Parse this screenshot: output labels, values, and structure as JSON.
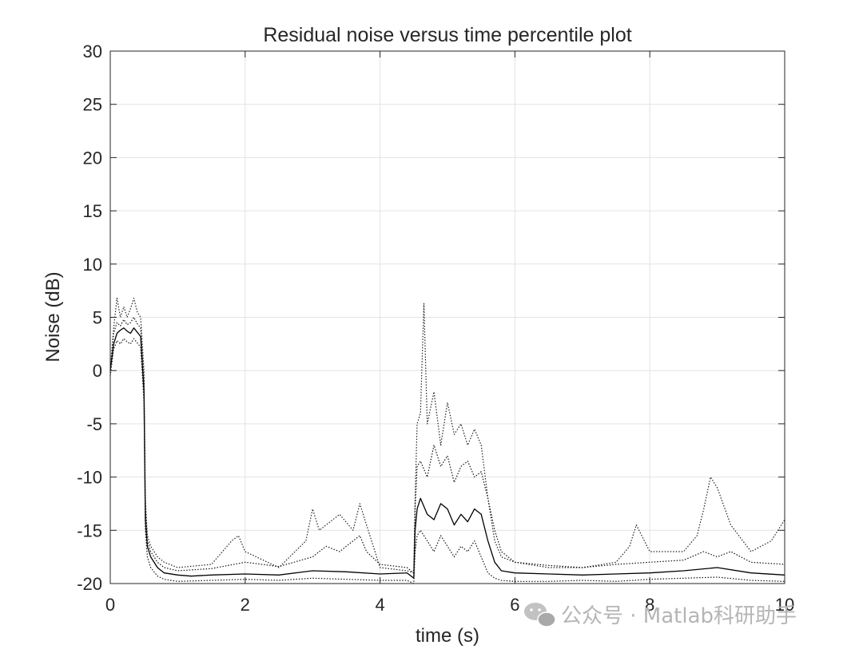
{
  "chart_data": {
    "type": "line",
    "title": "Residual noise versus time percentile plot",
    "xlabel": "time (s)",
    "ylabel": "Noise (dB)",
    "xlim": [
      0,
      10
    ],
    "ylim": [
      -20,
      30
    ],
    "x_ticks": [
      0,
      2,
      4,
      6,
      8,
      10
    ],
    "y_ticks": [
      -20,
      -15,
      -10,
      -5,
      0,
      5,
      10,
      15,
      20,
      25,
      30
    ],
    "x_tick_labels": [
      "0",
      "2",
      "4",
      "6",
      "8",
      "10"
    ],
    "y_tick_labels": [
      "-20",
      "-15",
      "-10",
      "-5",
      "0",
      "5",
      "10",
      "15",
      "20",
      "25",
      "30"
    ],
    "grid": true,
    "legend": "none",
    "series": [
      {
        "style": "solid",
        "color": "#000000",
        "x": [
          0,
          0.05,
          0.1,
          0.15,
          0.2,
          0.25,
          0.3,
          0.35,
          0.4,
          0.45,
          0.5,
          0.52,
          0.55,
          0.6,
          0.7,
          0.8,
          1.0,
          1.2,
          1.5,
          2.0,
          2.5,
          3.0,
          3.5,
          4.0,
          4.4,
          4.5,
          4.52,
          4.55,
          4.6,
          4.7,
          4.8,
          4.9,
          5.0,
          5.1,
          5.2,
          5.3,
          5.4,
          5.5,
          5.6,
          5.7,
          5.8,
          6.0,
          6.5,
          7.0,
          7.5,
          8.0,
          8.5,
          9.0,
          9.5,
          10.0
        ],
        "y": [
          0,
          2.5,
          3.5,
          3.8,
          4,
          3.7,
          3.5,
          4,
          3.6,
          3.2,
          -2,
          -14,
          -16.5,
          -17.5,
          -18.5,
          -19,
          -19.2,
          -19.3,
          -19.2,
          -19.1,
          -19.2,
          -18.8,
          -18.9,
          -19.1,
          -19,
          -19.5,
          -15,
          -13,
          -12,
          -13.5,
          -14,
          -12.5,
          -13,
          -14.5,
          -13.5,
          -14.2,
          -13,
          -13.5,
          -16,
          -18,
          -18.8,
          -19,
          -19.1,
          -19.2,
          -19.1,
          -19,
          -18.8,
          -18.5,
          -19,
          -19.2
        ]
      },
      {
        "style": "dotted",
        "color": "#222222",
        "x": [
          0,
          0.05,
          0.1,
          0.15,
          0.2,
          0.25,
          0.3,
          0.35,
          0.4,
          0.45,
          0.5,
          0.52,
          0.55,
          0.6,
          0.7,
          0.8,
          1.0,
          1.5,
          1.8,
          1.9,
          2.0,
          2.5,
          2.9,
          3.0,
          3.1,
          3.3,
          3.4,
          3.6,
          3.7,
          3.8,
          4.0,
          4.4,
          4.5,
          4.52,
          4.55,
          4.6,
          4.65,
          4.7,
          4.8,
          4.9,
          5.0,
          5.1,
          5.2,
          5.3,
          5.4,
          5.5,
          5.6,
          5.7,
          5.8,
          6.0,
          6.5,
          7.0,
          7.5,
          7.7,
          7.8,
          8.0,
          8.5,
          8.7,
          8.8,
          8.9,
          9.0,
          9.2,
          9.5,
          9.8,
          10.0
        ],
        "y": [
          0,
          4,
          6.8,
          5,
          6,
          5,
          5.8,
          6.8,
          5.5,
          5,
          0,
          -12,
          -15.5,
          -16.5,
          -17.5,
          -18,
          -18.5,
          -18.2,
          -16,
          -15.5,
          -17,
          -18.5,
          -16,
          -13,
          -15,
          -14,
          -13.5,
          -15,
          -12.5,
          -14.5,
          -18.5,
          -18.8,
          -19,
          -12,
          -5,
          -4,
          6.3,
          -5,
          -2,
          -7,
          -3,
          -6,
          -5,
          -7,
          -5.5,
          -7,
          -12,
          -16,
          -17.5,
          -18,
          -18.5,
          -18.5,
          -18,
          -16.5,
          -14.5,
          -17,
          -17,
          -15.5,
          -13,
          -10,
          -11,
          -14.5,
          -17,
          -16,
          -14
        ]
      },
      {
        "style": "dotted",
        "color": "#111111",
        "x": [
          0,
          0.05,
          0.1,
          0.15,
          0.2,
          0.25,
          0.3,
          0.35,
          0.4,
          0.45,
          0.5,
          0.52,
          0.55,
          0.6,
          0.7,
          0.8,
          1.0,
          1.5,
          2.0,
          2.5,
          3.0,
          3.2,
          3.4,
          3.6,
          3.7,
          3.8,
          4.0,
          4.4,
          4.5,
          4.52,
          4.55,
          4.6,
          4.7,
          4.8,
          4.9,
          5.0,
          5.1,
          5.2,
          5.3,
          5.4,
          5.5,
          5.6,
          5.7,
          5.8,
          6.0,
          6.5,
          7.0,
          7.5,
          8.0,
          8.5,
          8.8,
          9.0,
          9.2,
          9.5,
          10.0
        ],
        "y": [
          0,
          3.5,
          4.5,
          4.2,
          4.8,
          4.3,
          4.5,
          5,
          4.4,
          4,
          -1,
          -13,
          -16,
          -17,
          -18,
          -18.5,
          -18.8,
          -18.6,
          -18,
          -18.4,
          -17.5,
          -16.5,
          -17,
          -16,
          -15.5,
          -17,
          -18.2,
          -18.5,
          -19,
          -13,
          -9,
          -8.5,
          -10,
          -7,
          -9,
          -8,
          -10.5,
          -9,
          -8.5,
          -10,
          -9.5,
          -12,
          -15,
          -17,
          -18,
          -18.3,
          -18.5,
          -18.2,
          -18,
          -17.8,
          -17,
          -17.5,
          -17,
          -18,
          -18.2
        ]
      },
      {
        "style": "dotted",
        "color": "#111111",
        "x": [
          0,
          0.05,
          0.1,
          0.15,
          0.2,
          0.25,
          0.3,
          0.35,
          0.4,
          0.45,
          0.5,
          0.52,
          0.55,
          0.6,
          0.7,
          0.8,
          1.0,
          1.5,
          2.0,
          2.5,
          3.0,
          3.5,
          4.0,
          4.4,
          4.5,
          4.52,
          4.55,
          4.6,
          4.7,
          4.8,
          4.9,
          5.0,
          5.1,
          5.2,
          5.3,
          5.4,
          5.5,
          5.6,
          5.7,
          5.8,
          6.0,
          6.5,
          7.0,
          7.5,
          8.0,
          8.5,
          9.0,
          9.5,
          10.0
        ],
        "y": [
          -0.5,
          2,
          2.8,
          2.5,
          3,
          2.7,
          2.5,
          3,
          2.6,
          2.2,
          -3,
          -15,
          -17.5,
          -18.5,
          -19.3,
          -19.6,
          -19.8,
          -19.7,
          -19.6,
          -19.7,
          -19.5,
          -19.6,
          -19.7,
          -19.7,
          -20,
          -17,
          -15.5,
          -15,
          -16,
          -17,
          -15.5,
          -16.5,
          -17.5,
          -16.5,
          -17,
          -16,
          -17.5,
          -19,
          -19.5,
          -19.7,
          -19.8,
          -19.8,
          -19.7,
          -19.8,
          -19.6,
          -19.5,
          -19.4,
          -19.7,
          -19.8
        ]
      }
    ]
  },
  "watermark": {
    "text": "公众号 · Matlab科研助手",
    "icon": "wechat-icon"
  }
}
